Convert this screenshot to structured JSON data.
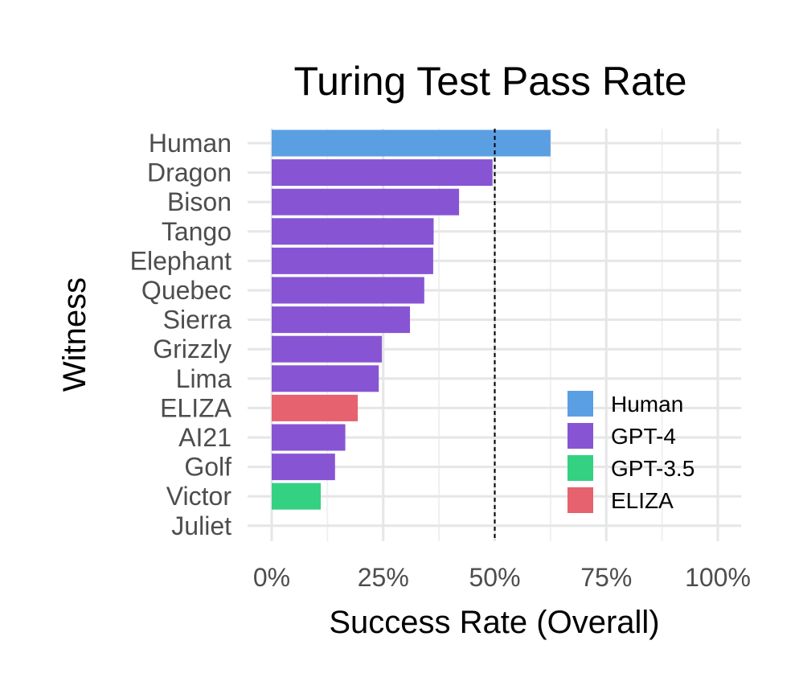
{
  "chart_data": {
    "type": "bar",
    "orientation": "horizontal",
    "title": "Turing Test Pass Rate",
    "xlabel": "Success Rate (Overall)",
    "ylabel": "Witness",
    "xlim": [
      0,
      1
    ],
    "xticks": [
      0,
      0.25,
      0.5,
      0.75,
      1
    ],
    "xtick_labels": [
      "0%",
      "25%",
      "50%",
      "75%",
      "100%"
    ],
    "reference_line": 0.5,
    "grid": true,
    "legend_position": "bottom-right",
    "groups": [
      {
        "name": "Human",
        "color": "#5b9fe3"
      },
      {
        "name": "GPT-4",
        "color": "#8755d3"
      },
      {
        "name": "GPT-3.5",
        "color": "#34d183"
      },
      {
        "name": "ELIZA",
        "color": "#e6626f"
      }
    ],
    "categories": [
      "Human",
      "Dragon",
      "Bison",
      "Tango",
      "Elephant",
      "Quebec",
      "Sierra",
      "Grizzly",
      "Lima",
      "ELIZA",
      "AI21",
      "Golf",
      "Victor",
      "Juliet"
    ],
    "values": [
      0.625,
      0.495,
      0.42,
      0.363,
      0.362,
      0.342,
      0.31,
      0.247,
      0.24,
      0.193,
      0.165,
      0.142,
      0.11,
      0
    ],
    "bar_groups": [
      "Human",
      "GPT-4",
      "GPT-4",
      "GPT-4",
      "GPT-4",
      "GPT-4",
      "GPT-4",
      "GPT-4",
      "GPT-4",
      "ELIZA",
      "GPT-4",
      "GPT-4",
      "GPT-3.5",
      "GPT-4"
    ]
  }
}
